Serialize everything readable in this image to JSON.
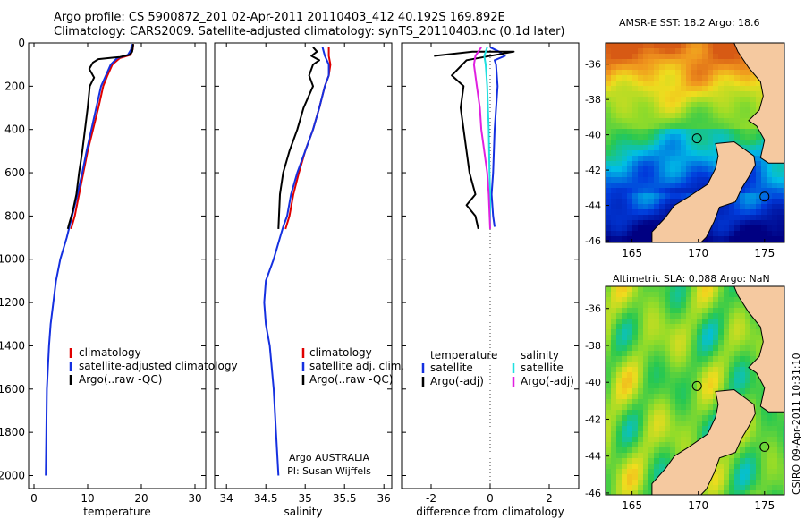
{
  "header": {
    "line1": "Argo profile: CS 5900872_201 02-Apr-2011 20110403_412 40.192S 169.892E",
    "line2": "Climatology: CARS2009. Satellite-adjusted climatology: synTS_20110403.nc (0.1d later)"
  },
  "credit": "CSIRO 09-Apr-2011 10:31:10",
  "colors": {
    "climatology": "#e00000",
    "satellite": "#1530e0",
    "argo": "#000000",
    "sal_satellite": "#20e0e0",
    "sal_argo": "#e020e0"
  },
  "chart_data": [
    {
      "type": "line",
      "id": "temperature",
      "xlabel": "temperature",
      "xlim": [
        -1,
        32
      ],
      "ylim": [
        2060,
        0
      ],
      "xticks": [
        "0",
        "10",
        "20",
        "30"
      ],
      "yticks": [
        "0",
        "200",
        "400",
        "600",
        "800",
        "1000",
        "1200",
        "1400",
        "1600",
        "1800",
        "2000"
      ],
      "legend": [
        "climatology",
        "satellite-adjusted climatology",
        "Argo(..raw -QC)"
      ],
      "annotation": [],
      "series": [
        {
          "name": "climatology",
          "color": "#e00000",
          "x": [
            18.5,
            18.4,
            18.0,
            16.0,
            14.6,
            13.7,
            12.9,
            12.0,
            11.0,
            10.0,
            9.2,
            8.4,
            7.6,
            6.9
          ],
          "y": [
            5,
            30,
            55,
            70,
            100,
            150,
            200,
            300,
            400,
            500,
            600,
            700,
            800,
            860
          ]
        },
        {
          "name": "satellite-adjusted climatology",
          "color": "#1530e0",
          "x": [
            18.2,
            18.1,
            17.5,
            15.5,
            14.3,
            13.4,
            12.5,
            11.6,
            10.7,
            9.8,
            9.0,
            8.1,
            7.1,
            6.1,
            4.9,
            4.1,
            3.6,
            3.1,
            2.8,
            2.6,
            2.4,
            2.3,
            2.2
          ],
          "y": [
            5,
            30,
            55,
            70,
            100,
            150,
            200,
            300,
            400,
            500,
            600,
            700,
            800,
            900,
            1000,
            1100,
            1200,
            1300,
            1400,
            1500,
            1600,
            1800,
            2000
          ]
        },
        {
          "name": "Argo(..raw -QC)",
          "color": "#000000",
          "x": [
            18.5,
            18.3,
            17.8,
            16.0,
            12.0,
            11.0,
            10.3,
            11.2,
            10.4,
            10.0,
            9.5,
            9.0,
            8.4,
            7.9,
            7.2,
            6.5,
            6.3
          ],
          "y": [
            5,
            40,
            55,
            65,
            75,
            90,
            120,
            160,
            200,
            300,
            400,
            500,
            600,
            700,
            780,
            840,
            860
          ]
        }
      ]
    },
    {
      "type": "line",
      "id": "salinity",
      "xlabel": "salinity",
      "xlim": [
        33.85,
        36.1
      ],
      "ylim": [
        2060,
        0
      ],
      "xticks": [
        "34",
        "34.5",
        "35",
        "35.5",
        "36"
      ],
      "legend": [
        "climatology",
        "satellite adj. clim.",
        "Argo(..raw -QC)"
      ],
      "annotation": [
        "Argo AUSTRALIA",
        "PI: Susan Wijffels"
      ],
      "series": [
        {
          "name": "climatology",
          "color": "#e00000",
          "x": [
            35.3,
            35.3,
            35.32,
            35.3,
            35.25,
            35.18,
            35.1,
            35.0,
            34.92,
            34.85,
            34.8,
            34.75
          ],
          "y": [
            20,
            60,
            100,
            150,
            200,
            300,
            400,
            500,
            600,
            700,
            800,
            860
          ]
        },
        {
          "name": "satellite adj. clim.",
          "color": "#1530e0",
          "x": [
            35.22,
            35.25,
            35.3,
            35.3,
            35.25,
            35.18,
            35.1,
            35.0,
            34.9,
            34.82,
            34.77,
            34.72,
            34.68,
            34.6,
            34.5,
            34.48,
            34.5,
            34.55,
            34.6,
            34.63,
            34.66
          ],
          "y": [
            20,
            60,
            100,
            150,
            200,
            300,
            400,
            500,
            600,
            700,
            800,
            850,
            900,
            1000,
            1100,
            1200,
            1300,
            1400,
            1600,
            1800,
            2000
          ]
        },
        {
          "name": "Argo(..raw -QC)",
          "color": "#000000",
          "x": [
            35.1,
            35.15,
            35.08,
            35.18,
            35.1,
            35.05,
            35.1,
            34.98,
            34.9,
            34.8,
            34.72,
            34.68,
            34.66
          ],
          "y": [
            20,
            40,
            60,
            80,
            100,
            150,
            200,
            300,
            400,
            500,
            600,
            700,
            860
          ]
        }
      ]
    },
    {
      "type": "line",
      "id": "difference",
      "xlabel": "difference from climatology",
      "xlim": [
        -3.0,
        3.0
      ],
      "ylim": [
        2060,
        0
      ],
      "xticks": [
        "-2",
        "0",
        "2"
      ],
      "legend": [
        {
          "title": "temperature",
          "entries": [
            "satellite",
            "Argo(-adj)"
          ]
        },
        {
          "title": "salinity",
          "entries": [
            "satellite",
            "Argo(-adj)"
          ]
        }
      ],
      "series": [
        {
          "name": "temperature satellite",
          "color": "#1530e0",
          "x": [
            0.0,
            0.3,
            0.5,
            0.15,
            0.2,
            0.25,
            0.15,
            0.1,
            0.05,
            0.1,
            0.15
          ],
          "y": [
            20,
            40,
            60,
            80,
            100,
            200,
            400,
            600,
            700,
            800,
            850
          ]
        },
        {
          "name": "temperature Argo(-adj)",
          "color": "#000000",
          "x": [
            -1.9,
            -0.6,
            0.8,
            -0.8,
            -1.3,
            -0.9,
            -1.0,
            -0.9,
            -0.8,
            -0.7,
            -0.5,
            -0.8,
            -0.5,
            -0.4
          ],
          "y": [
            60,
            40,
            40,
            80,
            150,
            200,
            300,
            400,
            500,
            600,
            700,
            750,
            800,
            860
          ]
        },
        {
          "name": "salinity satellite",
          "color": "#20e0e0",
          "x": [
            -0.1,
            -0.2,
            -0.15,
            -0.1,
            -0.05,
            -0.02,
            0.0,
            0.0,
            0.0
          ],
          "y": [
            20,
            60,
            100,
            200,
            400,
            600,
            700,
            800,
            860
          ]
        },
        {
          "name": "salinity Argo(-adj)",
          "color": "#e020e0",
          "x": [
            -0.3,
            -0.5,
            -0.55,
            -0.45,
            -0.35,
            -0.3,
            -0.2,
            -0.1,
            -0.05,
            0.0
          ],
          "y": [
            20,
            60,
            100,
            200,
            300,
            400,
            500,
            600,
            700,
            860
          ]
        }
      ]
    },
    {
      "type": "heatmap",
      "id": "sst-map",
      "title": "AMSR-E SST: 18.2 Argo: 18.6",
      "xlim": [
        163,
        176.5
      ],
      "ylim": [
        -46.1,
        -34.8
      ],
      "xticks": [
        "165",
        "170",
        "175"
      ],
      "yticks": [
        "-36",
        "-38",
        "-40",
        "-42",
        "-44",
        "-46"
      ],
      "markers": [
        [
          169.9,
          -40.2
        ],
        [
          175.0,
          -43.5
        ]
      ]
    },
    {
      "type": "heatmap",
      "id": "sla-map",
      "title": "Altimetric SLA: 0.088 Argo: NaN",
      "xlim": [
        163,
        176.5
      ],
      "ylim": [
        -46.1,
        -34.8
      ],
      "xticks": [
        "165",
        "170",
        "175"
      ],
      "yticks": [
        "-36",
        "-38",
        "-40",
        "-42",
        "-44",
        "-46"
      ],
      "markers": [
        [
          169.9,
          -40.2
        ],
        [
          175.0,
          -43.5
        ]
      ]
    }
  ]
}
